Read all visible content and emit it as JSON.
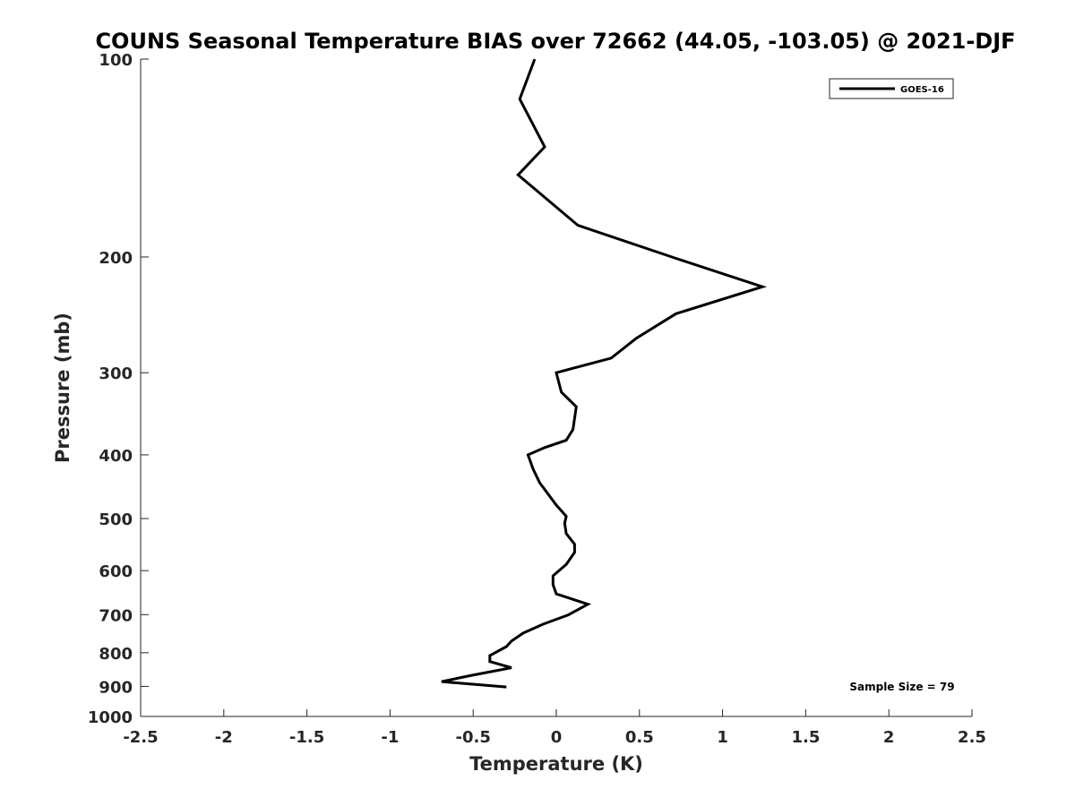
{
  "chart_data": {
    "type": "line",
    "title": "COUNS Seasonal Temperature BIAS over 72662 (44.05, -103.05) @ 2021-DJF",
    "xlabel": "Temperature (K)",
    "ylabel": "Pressure (mb)",
    "xlim": [
      -2.5,
      2.5
    ],
    "ylim": [
      100,
      1000
    ],
    "y_scale": "log",
    "y_reversed": true,
    "grid": false,
    "legend_position": "top-right",
    "x_ticks": [
      -2.5,
      -2,
      -1.5,
      -1,
      -0.5,
      0,
      0.5,
      1,
      1.5,
      2,
      2.5
    ],
    "x_tick_labels": [
      "-2.5",
      "-2",
      "-1.5",
      "-1",
      "-0.5",
      "0",
      "0.5",
      "1",
      "1.5",
      "2",
      "2.5"
    ],
    "y_ticks": [
      100,
      200,
      300,
      400,
      500,
      600,
      700,
      800,
      900,
      1000
    ],
    "y_tick_labels": [
      "100",
      "200",
      "300",
      "400",
      "500",
      "600",
      "700",
      "800",
      "900",
      "1000"
    ],
    "series": [
      {
        "name": "GOES-16",
        "color": "#000000",
        "points": [
          [
            -0.13,
            100
          ],
          [
            -0.22,
            115
          ],
          [
            -0.07,
            136
          ],
          [
            -0.23,
            150
          ],
          [
            0.13,
            179
          ],
          [
            0.72,
            201
          ],
          [
            1.24,
            222
          ],
          [
            0.72,
            244
          ],
          [
            0.48,
            266
          ],
          [
            0.33,
            285
          ],
          [
            0.0,
            300
          ],
          [
            0.03,
            321
          ],
          [
            0.12,
            338
          ],
          [
            0.1,
            366
          ],
          [
            0.06,
            380
          ],
          [
            -0.07,
            390
          ],
          [
            -0.17,
            400
          ],
          [
            -0.14,
            420
          ],
          [
            -0.1,
            441
          ],
          [
            0.0,
            477
          ],
          [
            0.06,
            496
          ],
          [
            0.05,
            508
          ],
          [
            0.06,
            527
          ],
          [
            0.11,
            547
          ],
          [
            0.11,
            563
          ],
          [
            0.06,
            587
          ],
          [
            -0.02,
            611
          ],
          [
            -0.02,
            630
          ],
          [
            0.0,
            651
          ],
          [
            0.19,
            675
          ],
          [
            0.07,
            701
          ],
          [
            -0.08,
            724
          ],
          [
            -0.2,
            747
          ],
          [
            -0.27,
            768
          ],
          [
            -0.3,
            783
          ],
          [
            -0.4,
            808
          ],
          [
            -0.4,
            825
          ],
          [
            -0.27,
            843
          ],
          [
            -0.52,
            867
          ],
          [
            -0.69,
            885
          ],
          [
            -0.3,
            902
          ]
        ]
      }
    ],
    "annotations": {
      "sample_size": "Sample Size = 79"
    }
  }
}
